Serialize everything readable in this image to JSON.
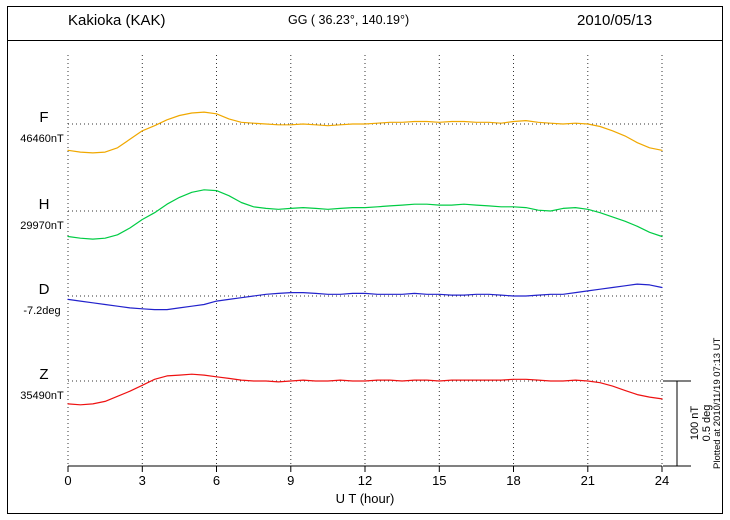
{
  "header": {
    "station": "Kakioka (KAK)",
    "coordinates": "GG ( 36.23°, 140.19°)",
    "date": "2010/05/13"
  },
  "plotted_note": "Plotted at 2010/11/19 07:13 UT",
  "scale_bar": {
    "nt_label": "100 nT",
    "deg_label": "0.5 deg"
  },
  "chart_data": {
    "type": "line",
    "title": "Kakioka (KAK) magnetogram 2010/05/13",
    "xlabel": "U T (hour)",
    "xlim": [
      0,
      24
    ],
    "xticks": [
      "0",
      "3",
      "6",
      "9",
      "12",
      "15",
      "18",
      "21",
      "24"
    ],
    "grid": "vertical dotted lines every 3 h; dotted horizontal baseline per component",
    "legend_position": "left labels per trace",
    "x": [
      0,
      0.5,
      1,
      1.5,
      2,
      2.5,
      3,
      3.5,
      4,
      4.5,
      5,
      5.5,
      6,
      6.5,
      7,
      7.5,
      8,
      8.5,
      9,
      9.5,
      10,
      10.5,
      11,
      11.5,
      12,
      12.5,
      13,
      13.5,
      14,
      14.5,
      15,
      15.5,
      16,
      16.5,
      17,
      17.5,
      18,
      18.5,
      19,
      19.5,
      20,
      20.5,
      21,
      21.5,
      22,
      22.5,
      23,
      23.5,
      24
    ],
    "series": [
      {
        "name": "F",
        "baseline_label": "46460nT",
        "baseline_value": 46460,
        "unit": "nT",
        "color": "#f0a800",
        "offsets": [
          -31,
          -33,
          -34,
          -33,
          -28,
          -18,
          -8,
          -2,
          5,
          10,
          13,
          14,
          12,
          6,
          2,
          1,
          0,
          -1,
          -1,
          0,
          -1,
          -2,
          -1,
          0,
          0,
          1,
          2,
          2,
          3,
          3,
          2,
          3,
          3,
          2,
          2,
          1,
          3,
          4,
          2,
          1,
          0,
          1,
          0,
          -3,
          -8,
          -14,
          -22,
          -28,
          -31
        ]
      },
      {
        "name": "H",
        "baseline_label": "29970nT",
        "baseline_value": 29970,
        "unit": "nT",
        "color": "#00cc44",
        "offsets": [
          -30,
          -32,
          -33,
          -32,
          -28,
          -20,
          -10,
          -2,
          8,
          16,
          22,
          25,
          24,
          18,
          10,
          5,
          3,
          2,
          3,
          4,
          3,
          2,
          3,
          4,
          4,
          5,
          6,
          7,
          8,
          8,
          7,
          7,
          8,
          7,
          6,
          5,
          5,
          4,
          1,
          0,
          3,
          4,
          2,
          -2,
          -7,
          -12,
          -18,
          -25,
          -30
        ]
      },
      {
        "name": "D",
        "baseline_label": "-7.2deg",
        "baseline_value": -7.2,
        "unit": "deg",
        "color": "#2222cc",
        "offsets": [
          -0.02,
          -0.03,
          -0.04,
          -0.05,
          -0.06,
          -0.07,
          -0.075,
          -0.08,
          -0.08,
          -0.07,
          -0.06,
          -0.05,
          -0.03,
          -0.02,
          -0.01,
          0,
          0.01,
          0.015,
          0.02,
          0.02,
          0.015,
          0.01,
          0.01,
          0.015,
          0.015,
          0.01,
          0.01,
          0.01,
          0.015,
          0.01,
          0.01,
          0.005,
          0.005,
          0.01,
          0.01,
          0.005,
          0,
          0,
          0.005,
          0.01,
          0.01,
          0.02,
          0.03,
          0.04,
          0.05,
          0.06,
          0.07,
          0.065,
          0.05
        ]
      },
      {
        "name": "Z",
        "baseline_label": "35490nT",
        "baseline_value": 35490,
        "unit": "nT",
        "color": "#ee1111",
        "offsets": [
          -27,
          -28,
          -27,
          -24,
          -18,
          -12,
          -5,
          2,
          6,
          7,
          8,
          7,
          5,
          3,
          1,
          0,
          0,
          -1,
          0,
          1,
          0,
          0,
          1,
          0,
          0,
          1,
          1,
          0,
          1,
          1,
          0,
          1,
          1,
          1,
          1,
          1,
          2,
          2,
          1,
          0,
          0,
          1,
          0,
          -2,
          -6,
          -11,
          -16,
          -19,
          -21
        ]
      }
    ],
    "scale": {
      "bracket_represents_nT": 100,
      "bracket_represents_deg": 0.5
    }
  }
}
